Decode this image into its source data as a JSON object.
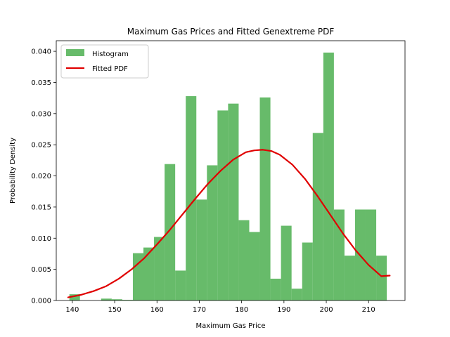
{
  "chart_data": {
    "type": "bar",
    "title": "Maximum Gas Prices and Fitted Genextreme PDF",
    "xlabel": "Maximum Gas Price",
    "ylabel": "Probability Density",
    "xlim": [
      136.2,
      218.6
    ],
    "ylim": [
      0,
      0.0417
    ],
    "xticks": [
      140,
      150,
      160,
      170,
      180,
      190,
      200,
      210
    ],
    "yticks": [
      0.0,
      0.005,
      0.01,
      0.015,
      0.02,
      0.025,
      0.03,
      0.035,
      0.04
    ],
    "ytick_labels": [
      "0.000",
      "0.005",
      "0.010",
      "0.015",
      "0.020",
      "0.025",
      "0.030",
      "0.035",
      "0.040"
    ],
    "grid": false,
    "legend_position": "top-left",
    "series": [
      {
        "name": "Histogram",
        "type": "histogram",
        "color": "#4caf50",
        "bin_start": 139.3,
        "bin_width": 2.5,
        "values": [
          0.001,
          0.0,
          0.0,
          0.0003,
          0.0002,
          0.0001,
          0.0076,
          0.0085,
          0.0102,
          0.0219,
          0.0048,
          0.0328,
          0.0162,
          0.0217,
          0.0305,
          0.0316,
          0.0129,
          0.011,
          0.0326,
          0.0035,
          0.012,
          0.0019,
          0.0093,
          0.0269,
          0.0398,
          0.0146,
          0.0072,
          0.0146,
          0.0146,
          0.0072
        ]
      },
      {
        "name": "Fitted PDF",
        "type": "line",
        "color": "#e00000",
        "x": [
          139,
          142,
          145,
          148,
          151,
          154,
          157,
          160,
          163,
          166,
          169,
          172,
          175,
          178,
          181,
          183,
          185,
          187,
          189,
          192,
          195,
          198,
          201,
          204,
          207,
          210,
          213,
          215
        ],
        "values": [
          0.0005,
          0.0009,
          0.0015,
          0.0023,
          0.0035,
          0.005,
          0.0068,
          0.009,
          0.0113,
          0.0138,
          0.0163,
          0.0187,
          0.0208,
          0.0226,
          0.0238,
          0.0241,
          0.0242,
          0.024,
          0.0234,
          0.0218,
          0.0195,
          0.0167,
          0.0137,
          0.0107,
          0.008,
          0.0057,
          0.0039,
          0.004
        ]
      }
    ]
  }
}
